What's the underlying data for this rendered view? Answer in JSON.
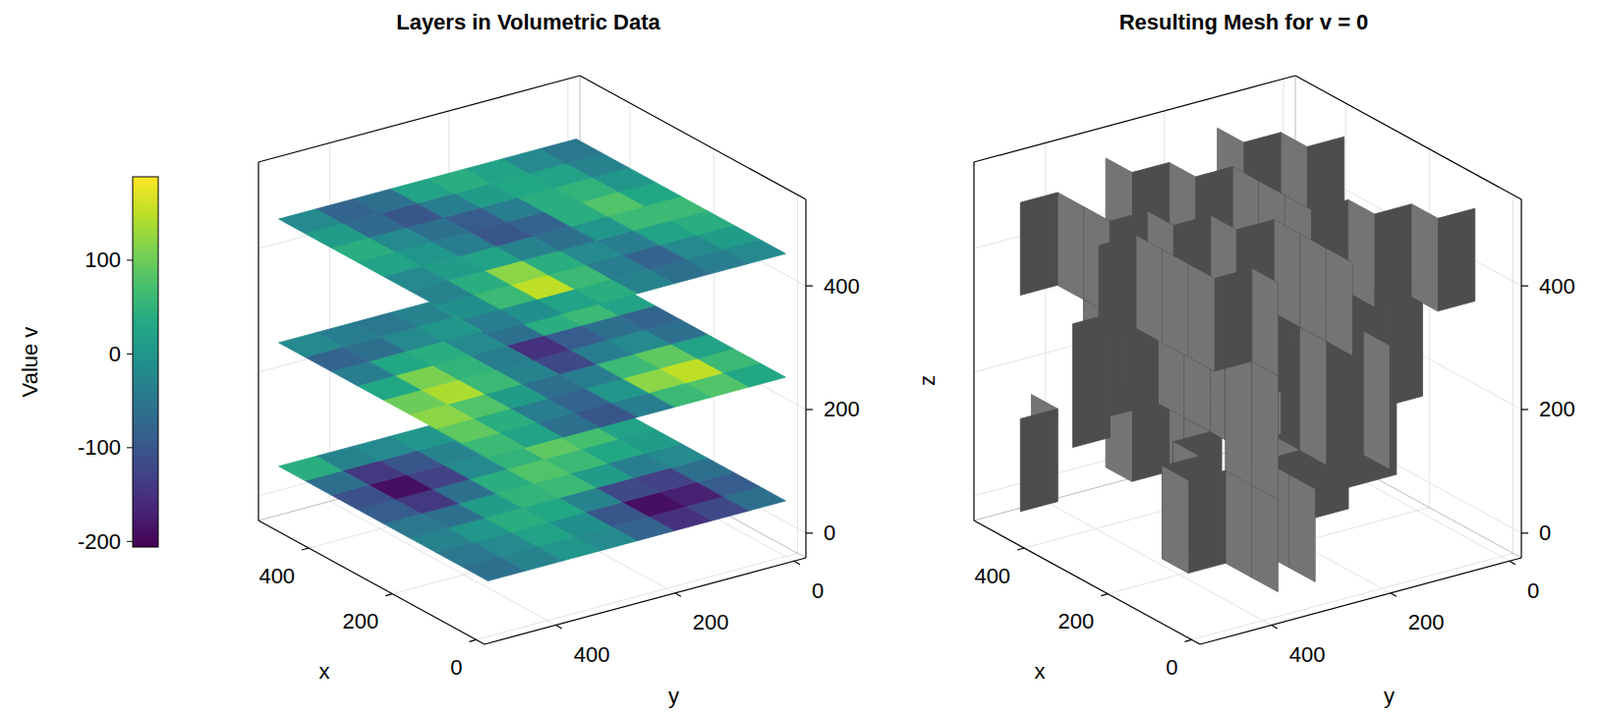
{
  "chart_data": [
    {
      "type": "volume_slices",
      "title": "Layers in Volumetric Data",
      "xlabel": "x",
      "ylabel": "y",
      "xlim": [
        -20,
        520
      ],
      "ylim": [
        -20,
        520
      ],
      "zlim": [
        -40,
        540
      ],
      "xticks": [
        0,
        200,
        400
      ],
      "yticks": [
        0,
        200,
        400
      ],
      "zticks": [
        0,
        200,
        400
      ],
      "grid": true,
      "x_edges": [
        0,
        62.5,
        125,
        187.5,
        250,
        312.5,
        375,
        437.5,
        500
      ],
      "y_edges": [
        0,
        62.5,
        125,
        187.5,
        250,
        312.5,
        375,
        437.5,
        500
      ],
      "layers": [
        {
          "z": 50,
          "values": [
            [
              -60,
              -120,
              -150,
              -80,
              -20,
              0,
              -30,
              -60
            ],
            [
              -90,
              -170,
              -190,
              -100,
              -10,
              20,
              -20,
              -50
            ],
            [
              -60,
              -130,
              -120,
              -30,
              30,
              40,
              0,
              -30
            ],
            [
              -20,
              -40,
              10,
              60,
              50,
              10,
              -60,
              -50
            ],
            [
              10,
              30,
              60,
              80,
              40,
              -60,
              -140,
              -90
            ],
            [
              20,
              70,
              90,
              50,
              -20,
              -130,
              -190,
              -110
            ],
            [
              0,
              90,
              110,
              40,
              -30,
              -100,
              -140,
              -60
            ],
            [
              -20,
              50,
              70,
              20,
              0,
              -20,
              -30,
              40
            ]
          ]
        },
        {
          "z": 250,
          "values": [
            [
              30,
              80,
              60,
              -40,
              -100,
              -60,
              20,
              60
            ],
            [
              60,
              150,
              120,
              0,
              -80,
              -40,
              40,
              90
            ],
            [
              20,
              90,
              60,
              -40,
              -60,
              10,
              80,
              120
            ],
            [
              -60,
              -20,
              -40,
              -120,
              -30,
              60,
              140,
              100
            ],
            [
              -80,
              -60,
              -90,
              -150,
              -40,
              50,
              110,
              30
            ],
            [
              20,
              60,
              40,
              -60,
              -20,
              40,
              30,
              -40
            ],
            [
              90,
              160,
              120,
              20,
              0,
              -20,
              -60,
              -80
            ],
            [
              60,
              110,
              80,
              10,
              -30,
              -50,
              -40,
              -20
            ]
          ]
        },
        {
          "z": 450,
          "values": [
            [
              -20,
              -40,
              -60,
              -30,
              40,
              20,
              -10,
              -40
            ],
            [
              10,
              -20,
              -80,
              -40,
              60,
              150,
              60,
              -10
            ],
            [
              40,
              20,
              -40,
              -20,
              40,
              120,
              40,
              -30
            ],
            [
              60,
              60,
              0,
              -60,
              -30,
              20,
              10,
              -20
            ],
            [
              30,
              80,
              40,
              -80,
              -100,
              -40,
              0,
              20
            ],
            [
              0,
              50,
              40,
              -40,
              -90,
              -60,
              -20,
              40
            ],
            [
              -30,
              20,
              30,
              10,
              -40,
              -100,
              -70,
              10
            ],
            [
              -50,
              -20,
              20,
              40,
              20,
              -60,
              -80,
              -20
            ]
          ]
        }
      ],
      "colorbar": {
        "label": "Value v",
        "range": [
          -206,
          189
        ],
        "ticks": [
          -200,
          -100,
          0,
          100
        ]
      }
    },
    {
      "type": "isosurface",
      "title": "Resulting Mesh for v = 0",
      "level": 0,
      "xlabel": "x",
      "ylabel": "y",
      "zlabel": "z",
      "xlim": [
        -20,
        520
      ],
      "ylim": [
        -20,
        520
      ],
      "zlim": [
        -40,
        540
      ],
      "xticks": [
        0,
        200,
        400
      ],
      "yticks": [
        0,
        200,
        400
      ],
      "zticks": [
        0,
        200,
        400
      ],
      "grid": true,
      "color": "#4d4d4d"
    }
  ]
}
